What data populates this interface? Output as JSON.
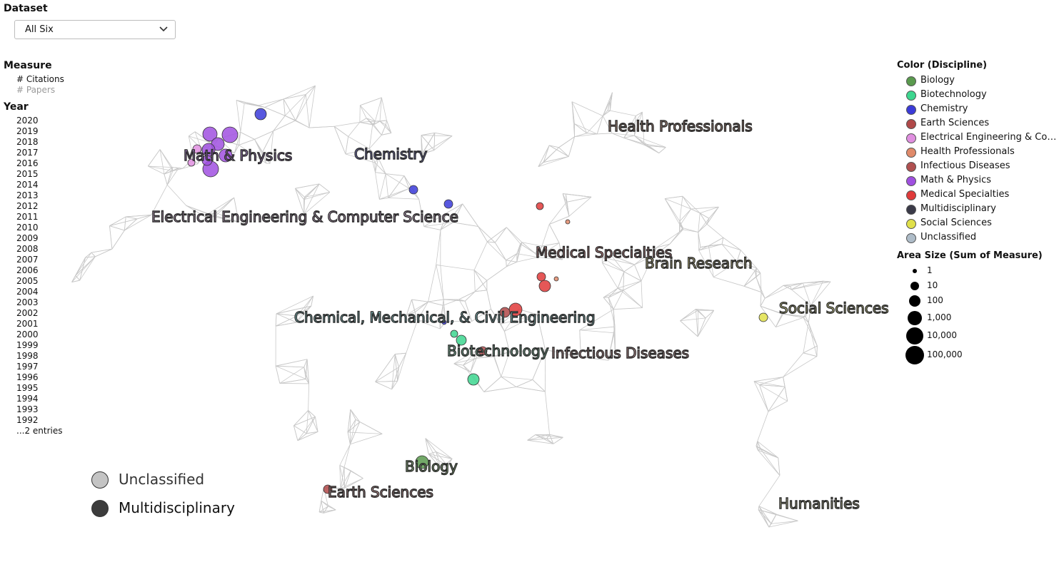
{
  "dataset": {
    "title": "Dataset",
    "selected": "All Six"
  },
  "measure": {
    "title": "Measure",
    "options": [
      "# Citations",
      "# Papers"
    ],
    "selected": "# Citations"
  },
  "year": {
    "title": "Year",
    "items": [
      "2020",
      "2019",
      "2018",
      "2017",
      "2016",
      "2015",
      "2014",
      "2013",
      "2012",
      "2011",
      "2010",
      "2009",
      "2008",
      "2007",
      "2006",
      "2005",
      "2004",
      "2003",
      "2002",
      "2001",
      "2000",
      "1999",
      "1998",
      "1997",
      "1996",
      "1995",
      "1994",
      "1993",
      "1992"
    ],
    "more": "...2 entries"
  },
  "color_legend": {
    "title": "Color (Discipline)",
    "items": [
      {
        "label": "Biology",
        "color": "#5a9a4e"
      },
      {
        "label": "Biotechnology",
        "color": "#3dd68f"
      },
      {
        "label": "Chemistry",
        "color": "#3b3bd9"
      },
      {
        "label": "Earth Sciences",
        "color": "#b04848"
      },
      {
        "label": "Electrical Engineering & Com...",
        "color": "#e08fe0"
      },
      {
        "label": "Health Professionals",
        "color": "#e08a6a"
      },
      {
        "label": "Infectious Diseases",
        "color": "#b05050"
      },
      {
        "label": "Math & Physics",
        "color": "#a050e0"
      },
      {
        "label": "Medical Specialties",
        "color": "#e03a3a"
      },
      {
        "label": "Multidisciplinary",
        "color": "#3a3a48"
      },
      {
        "label": "Social Sciences",
        "color": "#e0e04a"
      },
      {
        "label": "Unclassified",
        "color": "#aebcc8"
      }
    ]
  },
  "size_legend": {
    "title": "Area Size (Sum of Measure)",
    "items": [
      "1",
      "10",
      "100",
      "1,000",
      "10,000",
      "100,000"
    ]
  },
  "special_legend": [
    {
      "label": "Unclassified",
      "color": "#c4c4c4"
    },
    {
      "label": "Multidisciplinary",
      "color": "#3c3c3c"
    }
  ],
  "map_labels": [
    {
      "name": "Health Professionals",
      "fill": "#e6b4a0"
    },
    {
      "name": "Math & Physics",
      "fill": "#c896f0"
    },
    {
      "name": "Chemistry",
      "fill": "#9696f0"
    },
    {
      "name": "Electrical Engineering & Computer Science",
      "fill": "#f0c8f0"
    },
    {
      "name": "Medical Specialties",
      "fill": "#f0a0a0"
    },
    {
      "name": "Brain Research",
      "fill": "#f0e6a0"
    },
    {
      "name": "Social Sciences",
      "fill": "#f0f0a0"
    },
    {
      "name": "Chemical, Mechanical, & Civil Engineering",
      "fill": "#a0f0f0"
    },
    {
      "name": "Biotechnology",
      "fill": "#a0f0c8"
    },
    {
      "name": "Infectious Diseases",
      "fill": "#f0b4b4"
    },
    {
      "name": "Biology",
      "fill": "#b4e6a0"
    },
    {
      "name": "Earth Sciences",
      "fill": "#f0b4b4"
    },
    {
      "name": "Humanities",
      "fill": "#e6e6b4"
    }
  ]
}
